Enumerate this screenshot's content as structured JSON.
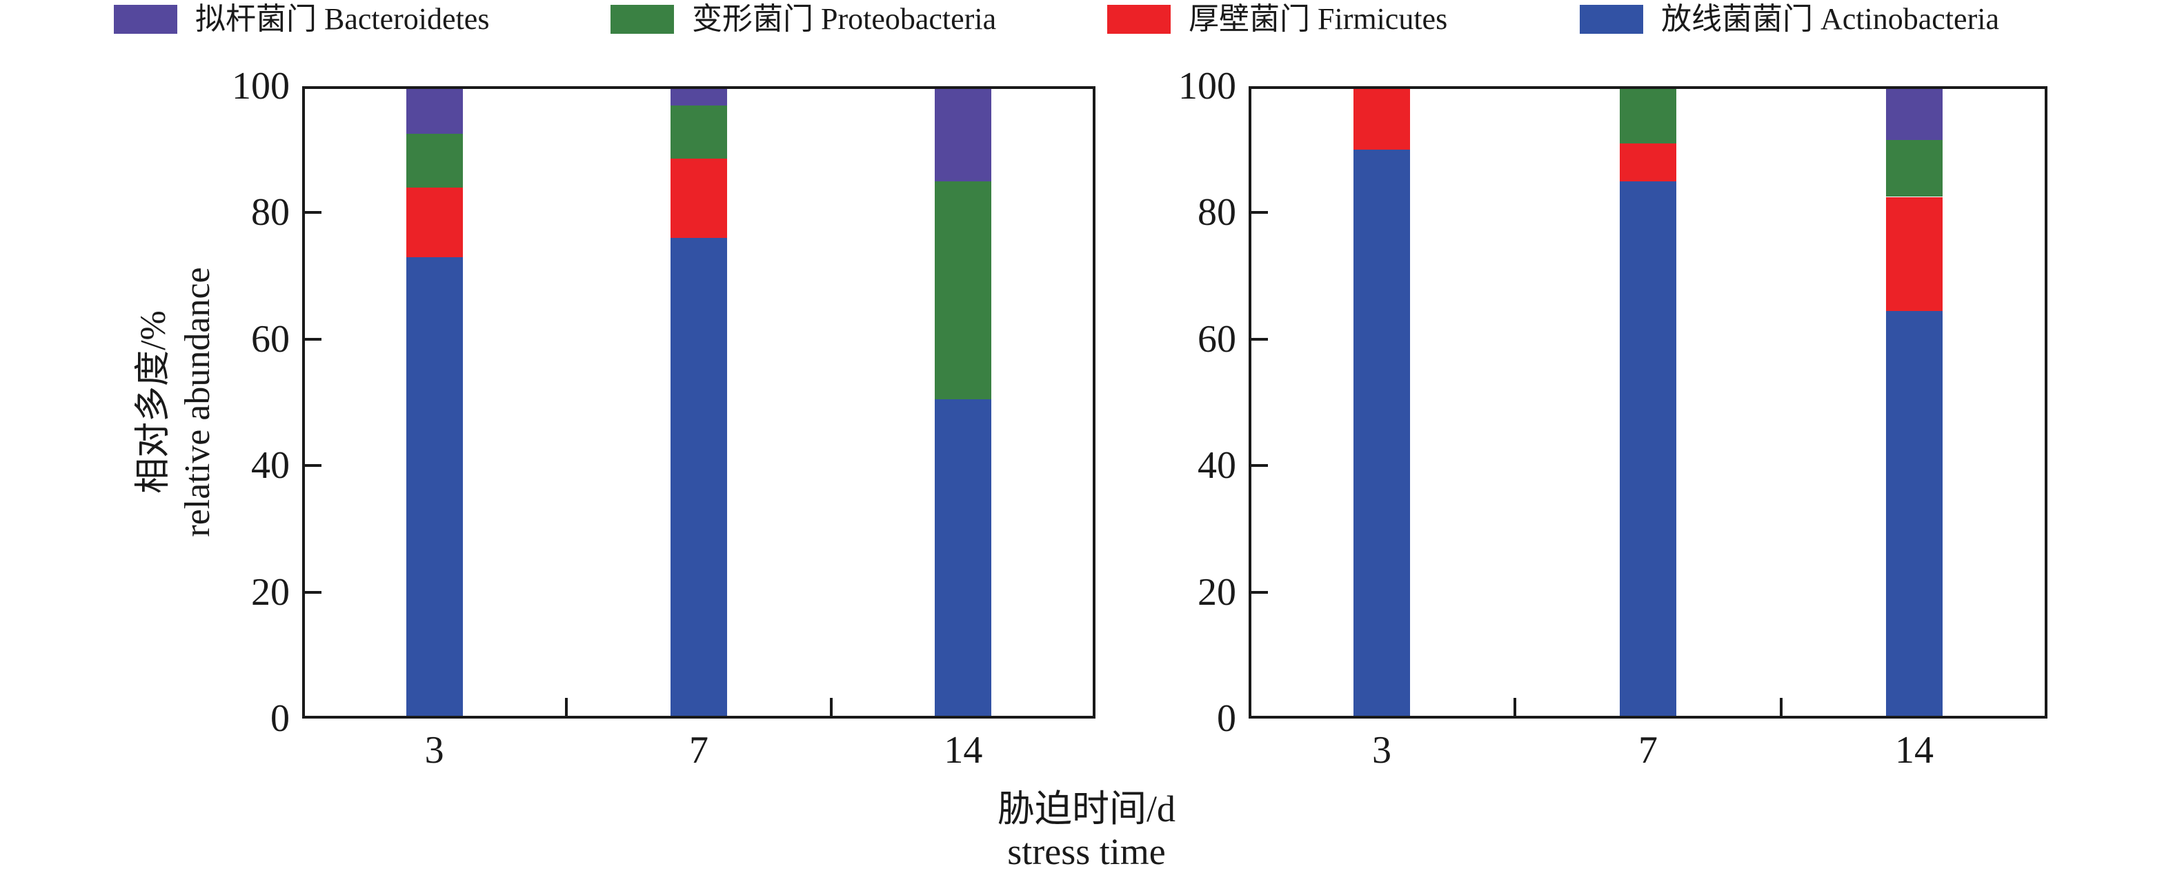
{
  "legend": {
    "items": [
      {
        "phylum": "bacteroidetes",
        "label": "拟杆菌门 Bacteroidetes",
        "color": "#55489D"
      },
      {
        "phylum": "proteobacteria",
        "label": "变形菌门 Proteobacteria",
        "color": "#3A8143"
      },
      {
        "phylum": "firmicutes",
        "label": "厚壁菌门 Firmicutes",
        "color": "#EC2227"
      },
      {
        "phylum": "actinobacteria",
        "label": "放线菌菌门 Actinobacteria",
        "color": "#3252A4"
      }
    ]
  },
  "axis": {
    "y_title_zh": "相对多度/%",
    "y_title_en": "relative abundance",
    "x_title_zh": "胁迫时间/d",
    "x_title_en": "stress time",
    "frame_color": "#1a1a1a"
  },
  "chart_data": [
    {
      "type": "bar",
      "stacked": true,
      "panel": "left",
      "categories": [
        "3",
        "7",
        "14"
      ],
      "xlabel": "胁迫时间/d stress time",
      "ylabel": "相对多度/% relative abundance",
      "ylim": [
        0,
        100
      ],
      "y_ticks": [
        0,
        20,
        40,
        60,
        80,
        100
      ],
      "grid": false,
      "series": [
        {
          "phylum": "actinobacteria",
          "name": "放线菌菌门 Actinobacteria",
          "color": "#3252A4",
          "values": [
            73,
            76,
            50.5
          ]
        },
        {
          "phylum": "firmicutes",
          "name": "厚壁菌门 Firmicutes",
          "color": "#EC2227",
          "values": [
            11,
            12.5,
            0
          ]
        },
        {
          "phylum": "proteobacteria",
          "name": "变形菌门 Proteobacteria",
          "color": "#3A8143",
          "values": [
            8.5,
            8.5,
            34.5
          ]
        },
        {
          "phylum": "bacteroidetes",
          "name": "拟杆菌门 Bacteroidetes",
          "color": "#55489D",
          "values": [
            7.5,
            3,
            15
          ]
        }
      ]
    },
    {
      "type": "bar",
      "stacked": true,
      "panel": "right",
      "categories": [
        "3",
        "7",
        "14"
      ],
      "xlabel": "胁迫时间/d stress time",
      "ylabel": "",
      "ylim": [
        0,
        100
      ],
      "y_ticks": [
        0,
        20,
        40,
        60,
        80,
        100
      ],
      "grid": false,
      "series": [
        {
          "phylum": "actinobacteria",
          "name": "放线菌菌门 Actinobacteria",
          "color": "#3252A4",
          "values": [
            90,
            85,
            64.5
          ]
        },
        {
          "phylum": "firmicutes",
          "name": "厚壁菌门 Firmicutes",
          "color": "#EC2227",
          "values": [
            10,
            6,
            18
          ]
        },
        {
          "phylum": "proteobacteria",
          "name": "变形菌门 Proteobacteria",
          "color": "#3A8143",
          "values": [
            0,
            9,
            9
          ]
        },
        {
          "phylum": "bacteroidetes",
          "name": "拟杆菌门 Bacteroidetes",
          "color": "#55489D",
          "values": [
            0,
            0,
            8.5
          ]
        }
      ]
    }
  ]
}
